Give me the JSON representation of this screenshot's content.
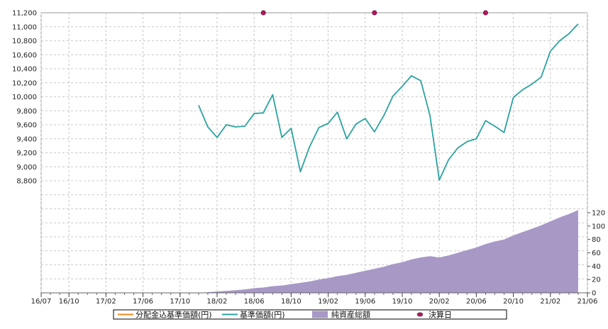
{
  "chart_data": {
    "type": "line",
    "title": "",
    "colors": {
      "nav_reinvested": "#f08a24",
      "nav": "#2ba3a0",
      "net_assets": "#a898c6",
      "settlement": "#b0175e",
      "grid": "#c8c8c8"
    },
    "x_axis": {
      "ticks": [
        "16/07",
        "16/10",
        "17/02",
        "17/06",
        "17/10",
        "18/02",
        "18/06",
        "18/10",
        "19/02",
        "19/06",
        "19/10",
        "20/02",
        "20/06",
        "20/10",
        "21/02",
        "21/06"
      ]
    },
    "y_left": {
      "range": [
        7200,
        11200
      ],
      "ticks": [
        "11,200",
        "11,000",
        "10,800",
        "10,600",
        "10,400",
        "10,200",
        "10,000",
        "9,800",
        "9,600",
        "9,400",
        "9,200",
        "9,000",
        "8,800"
      ],
      "tick_values": [
        11200,
        11000,
        10800,
        10600,
        10400,
        10200,
        10000,
        9800,
        9600,
        9400,
        9200,
        9000,
        8800
      ]
    },
    "y_right": {
      "range": [
        0,
        120
      ],
      "ticks": [
        "120",
        "100",
        "80",
        "60",
        "40",
        "20",
        "0"
      ],
      "tick_values": [
        120,
        100,
        80,
        60,
        40,
        20,
        0
      ]
    },
    "series": [
      {
        "key": "nav",
        "name": "基準価額(円)",
        "axis": "left",
        "points": [
          [
            "2017-12",
            9880
          ],
          [
            "2018-01",
            9570
          ],
          [
            "2018-02",
            9420
          ],
          [
            "2018-03",
            9600
          ],
          [
            "2018-04",
            9570
          ],
          [
            "2018-05",
            9580
          ],
          [
            "2018-06",
            9760
          ],
          [
            "2018-07",
            9770
          ],
          [
            "2018-08",
            10030
          ],
          [
            "2018-09",
            9420
          ],
          [
            "2018-10",
            9550
          ],
          [
            "2018-11",
            8930
          ],
          [
            "2018-12",
            9290
          ],
          [
            "2019-01",
            9560
          ],
          [
            "2019-02",
            9620
          ],
          [
            "2019-03",
            9780
          ],
          [
            "2019-04",
            9400
          ],
          [
            "2019-05",
            9610
          ],
          [
            "2019-06",
            9690
          ],
          [
            "2019-07",
            9500
          ],
          [
            "2019-08",
            9730
          ],
          [
            "2019-09",
            10010
          ],
          [
            "2019-10",
            10150
          ],
          [
            "2019-11",
            10300
          ],
          [
            "2019-12",
            10230
          ],
          [
            "2020-01",
            9730
          ],
          [
            "2020-02",
            8810
          ],
          [
            "2020-03",
            9100
          ],
          [
            "2020-04",
            9270
          ],
          [
            "2020-05",
            9360
          ],
          [
            "2020-06",
            9400
          ],
          [
            "2020-07",
            9660
          ],
          [
            "2020-08",
            9580
          ],
          [
            "2020-09",
            9490
          ],
          [
            "2020-10",
            9990
          ],
          [
            "2020-11",
            10100
          ],
          [
            "2020-12",
            10180
          ],
          [
            "2021-01",
            10280
          ],
          [
            "2021-02",
            10650
          ],
          [
            "2021-03",
            10800
          ],
          [
            "2021-04",
            10900
          ],
          [
            "2021-05",
            11040
          ]
        ]
      },
      {
        "key": "net_assets",
        "name": "純資産総額",
        "axis": "right",
        "points": [
          [
            "2017-12",
            0
          ],
          [
            "2018-01",
            1
          ],
          [
            "2018-02",
            2
          ],
          [
            "2018-03",
            3
          ],
          [
            "2018-04",
            4
          ],
          [
            "2018-05",
            5
          ],
          [
            "2018-06",
            7
          ],
          [
            "2018-07",
            8
          ],
          [
            "2018-08",
            10
          ],
          [
            "2018-09",
            11
          ],
          [
            "2018-10",
            13
          ],
          [
            "2018-11",
            15
          ],
          [
            "2018-12",
            17
          ],
          [
            "2019-01",
            20
          ],
          [
            "2019-02",
            22
          ],
          [
            "2019-03",
            25
          ],
          [
            "2019-04",
            27
          ],
          [
            "2019-05",
            30
          ],
          [
            "2019-06",
            33
          ],
          [
            "2019-07",
            36
          ],
          [
            "2019-08",
            39
          ],
          [
            "2019-09",
            43
          ],
          [
            "2019-10",
            46
          ],
          [
            "2019-11",
            50
          ],
          [
            "2019-12",
            53
          ],
          [
            "2020-01",
            55
          ],
          [
            "2020-02",
            53
          ],
          [
            "2020-03",
            56
          ],
          [
            "2020-04",
            60
          ],
          [
            "2020-05",
            64
          ],
          [
            "2020-06",
            68
          ],
          [
            "2020-07",
            73
          ],
          [
            "2020-08",
            77
          ],
          [
            "2020-09",
            80
          ],
          [
            "2020-10",
            86
          ],
          [
            "2020-11",
            91
          ],
          [
            "2020-12",
            96
          ],
          [
            "2021-01",
            101
          ],
          [
            "2021-02",
            107
          ],
          [
            "2021-03",
            113
          ],
          [
            "2021-04",
            118
          ],
          [
            "2021-05",
            124
          ]
        ]
      },
      {
        "key": "settlement",
        "name": "決算日",
        "axis": "left",
        "points": [
          [
            "2018-07",
            11200
          ],
          [
            "2019-07",
            11200
          ],
          [
            "2020-07",
            11200
          ]
        ]
      }
    ],
    "legend": [
      "分配金込基準価額(円)",
      "基準価額(円)",
      "純資産総額",
      "決算日"
    ]
  }
}
